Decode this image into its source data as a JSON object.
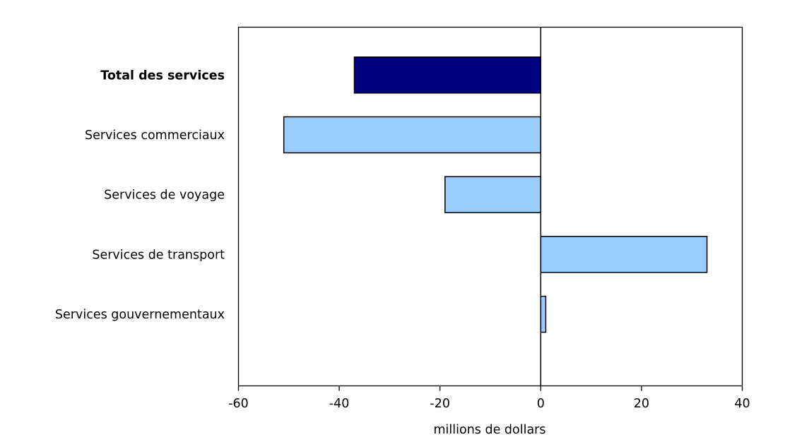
{
  "chart_data": {
    "type": "bar",
    "orientation": "horizontal",
    "title": "",
    "xlabel": "millions de dollars",
    "ylabel": "",
    "xlim": [
      -60,
      40
    ],
    "xticks": [
      -60,
      -40,
      -20,
      0,
      20,
      40
    ],
    "grid": false,
    "categories": [
      "Total des services",
      "Services commerciaux",
      "Services de voyage",
      "Services de transport",
      "Services gouvernementaux"
    ],
    "values": [
      -37,
      -51,
      -19,
      33,
      1
    ],
    "bold_categories": [
      "Total des services"
    ],
    "colors": {
      "Total des services": "#000080",
      "default": "#99CCFF",
      "outline": "#000000"
    }
  }
}
